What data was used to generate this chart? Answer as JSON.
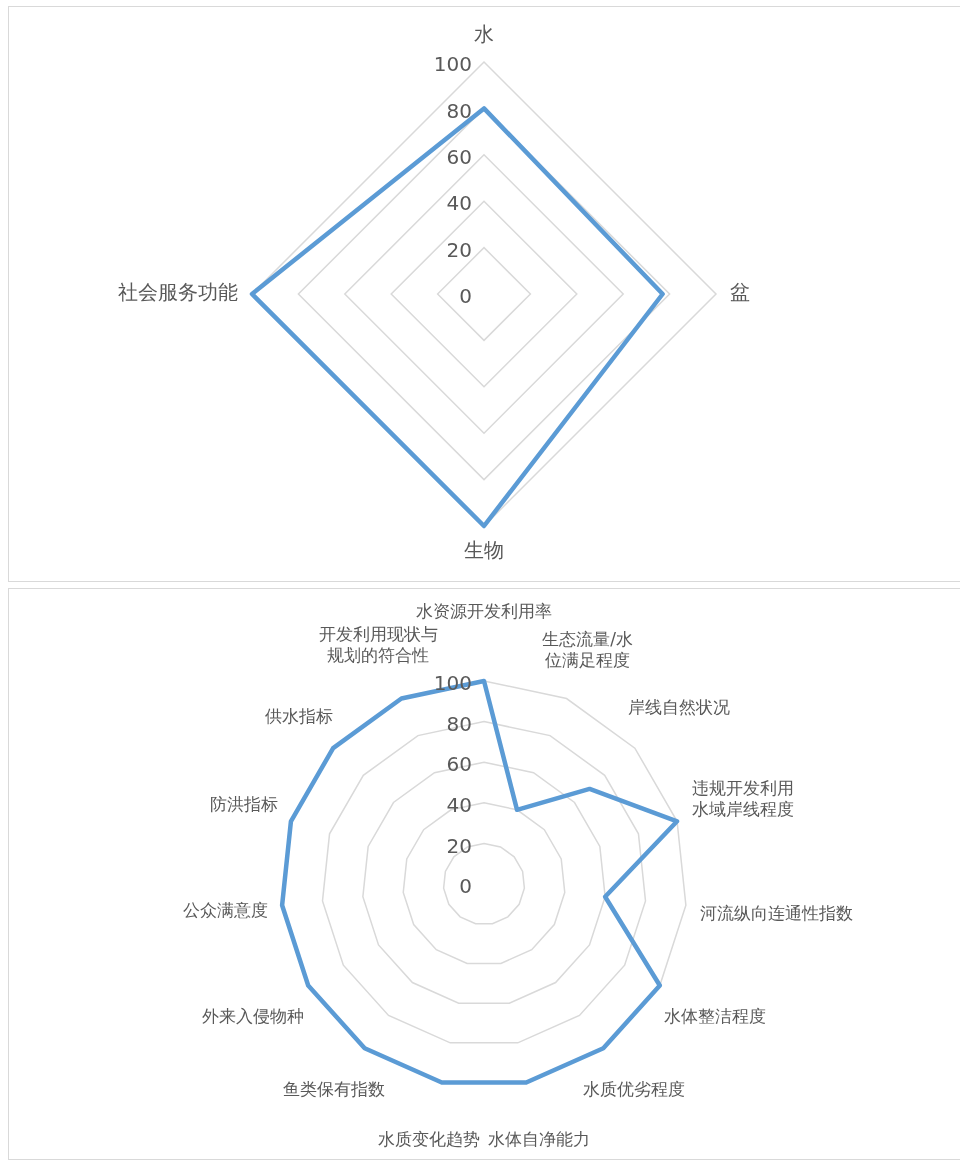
{
  "chart_data": [
    {
      "type": "radar",
      "categories": [
        "水",
        "盆",
        "生物",
        "社会服务功能"
      ],
      "series": [
        {
          "color": "#5b9bd5",
          "values": [
            80,
            77,
            100,
            100
          ]
        }
      ],
      "ylim": [
        0,
        100
      ],
      "yticks": [
        0,
        20,
        40,
        60,
        80,
        100
      ],
      "grid": true,
      "legend": false,
      "marker": "none"
    },
    {
      "type": "radar",
      "categories": [
        "水资源开发利用率",
        "生态流量/水位满足程度",
        "岸线自然状况",
        "违规开发利用水域岸线程度",
        "河流纵向连通性指数",
        "水体整洁程度",
        "水质优劣程度",
        "水体自净能力",
        "水质变化趋势",
        "鱼类保有指数",
        "外来入侵物种",
        "公众满意度",
        "防洪指标",
        "供水指标",
        "开发利用现状与规划的符合性"
      ],
      "series": [
        {
          "color": "#5b9bd5",
          "values": [
            100,
            40,
            70,
            100,
            60,
            100,
            100,
            100,
            100,
            100,
            100,
            100,
            100,
            100,
            100
          ]
        }
      ],
      "ylim": [
        0,
        100
      ],
      "yticks": [
        0,
        20,
        40,
        60,
        80,
        100
      ],
      "grid": true,
      "legend": false,
      "marker": "none"
    }
  ]
}
